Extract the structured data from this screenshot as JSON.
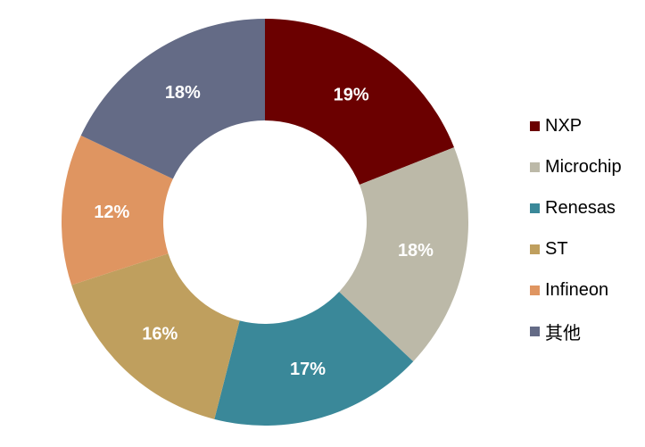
{
  "chart_data": {
    "type": "pie",
    "subtype": "donut",
    "title": "",
    "categories": [
      "NXP",
      "Microchip",
      "Renesas",
      "ST",
      "Infineon",
      "其他"
    ],
    "values": [
      19,
      18,
      17,
      16,
      12,
      18
    ],
    "value_labels": [
      "19%",
      "18%",
      "17%",
      "16%",
      "12%",
      "18%"
    ],
    "colors": [
      "#6b0000",
      "#bcb9a8",
      "#3a8899",
      "#bf9f5e",
      "#df9561",
      "#646b86"
    ],
    "start_angle_deg": 0,
    "direction": "clockwise",
    "legend_position": "right"
  }
}
